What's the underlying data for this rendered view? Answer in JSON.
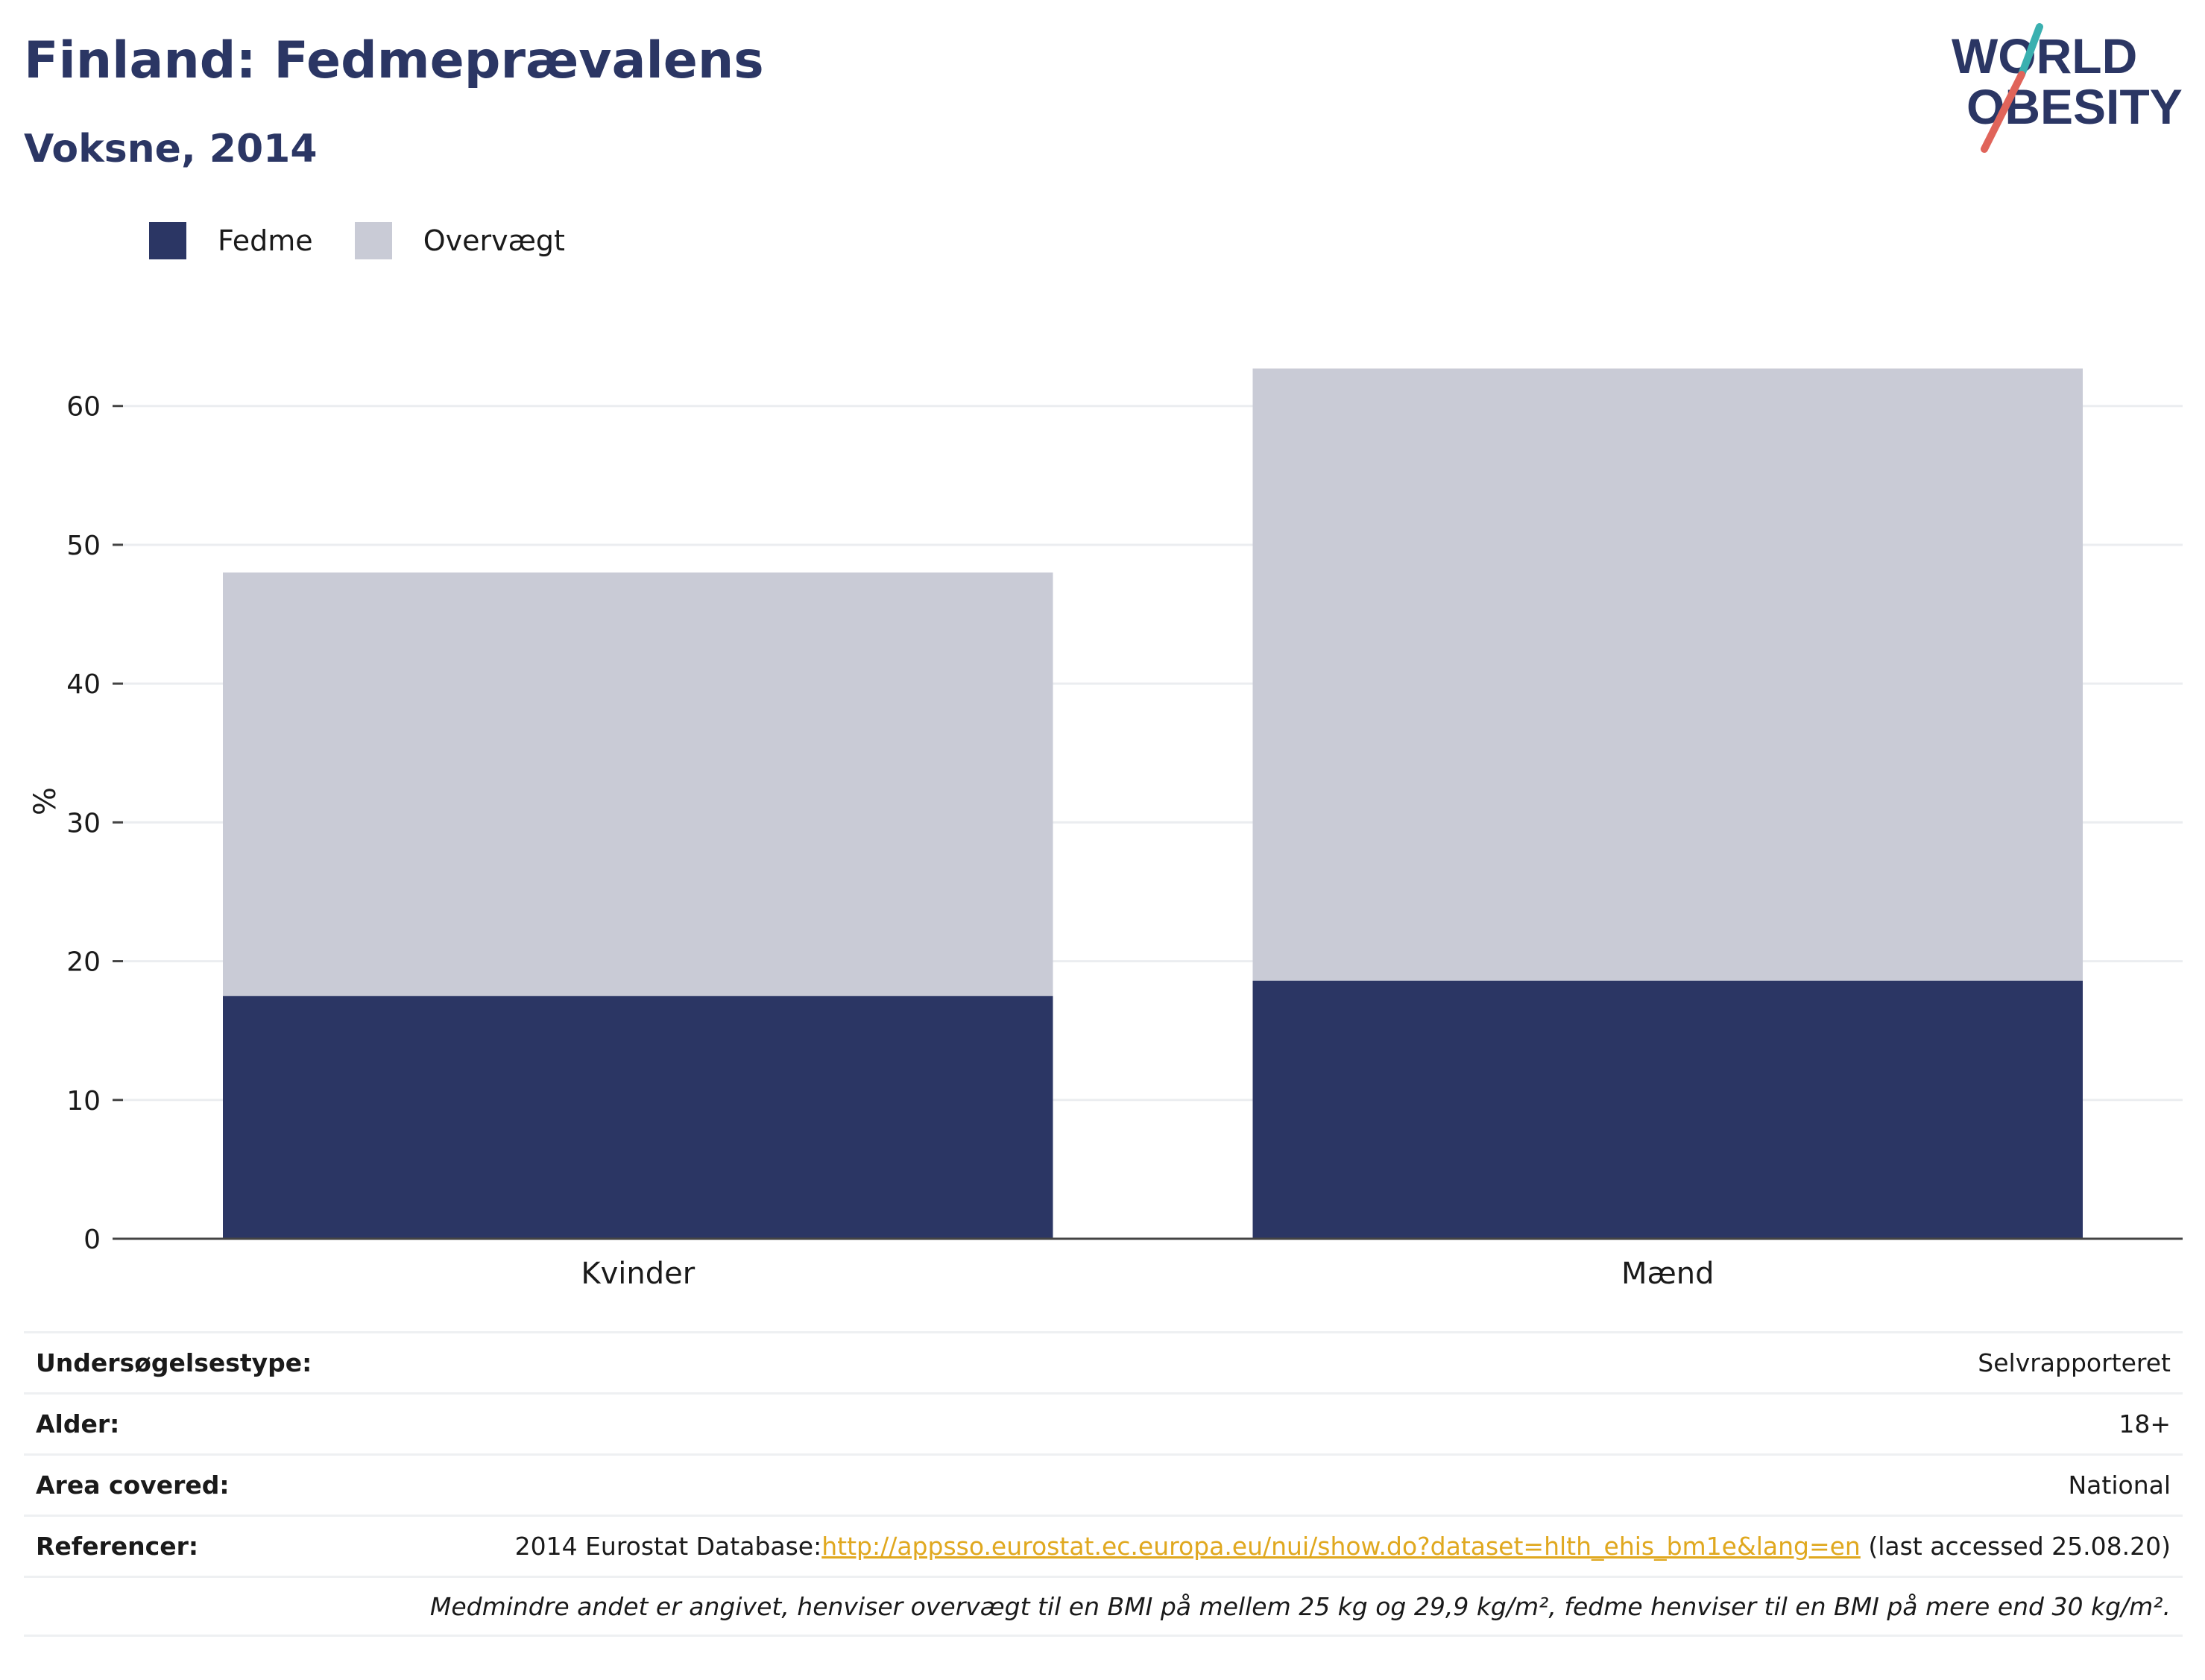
{
  "header": {
    "title": "Finland: Fedmeprævalens",
    "subtitle": "Voksne, 2014"
  },
  "logo": {
    "line1": "WORLD",
    "line2": "OBESITY",
    "colors": {
      "text": "#2b3664",
      "accent_teal": "#3ab0b0",
      "accent_red": "#e0645a"
    }
  },
  "legend": [
    {
      "label": "Fedme",
      "color": "#2b3664"
    },
    {
      "label": "Overvægt",
      "color": "#c9cbd6"
    }
  ],
  "chart_data": {
    "type": "bar",
    "stacked": true,
    "categories": [
      "Kvinder",
      "Mænd"
    ],
    "series": [
      {
        "name": "Fedme",
        "values": [
          17.5,
          18.6
        ],
        "color": "#2b3664"
      },
      {
        "name": "Overvægt",
        "values": [
          30.5,
          44.1
        ],
        "color": "#c9cbd6"
      }
    ],
    "ylabel": "%",
    "ylim": [
      0,
      65
    ],
    "yticks": [
      0,
      10,
      20,
      30,
      40,
      50,
      60
    ],
    "grid": true,
    "legend_position": "top-left"
  },
  "meta": {
    "rows": [
      {
        "key": "Undersøgelsestype:",
        "value": "Selvrapporteret"
      },
      {
        "key": "Alder:",
        "value": "18+"
      },
      {
        "key": "Area covered:",
        "value": "National"
      }
    ],
    "reference": {
      "key": "Referencer:",
      "prefix": "2014 Eurostat Database:",
      "link": "http://appsso.eurostat.ec.europa.eu/nui/show.do?dataset=hlth_ehis_bm1e&lang=en",
      "suffix": " (last accessed 25.08.20)"
    },
    "note": "Medmindre andet er angivet, henviser overvægt til en BMI på mellem 25 kg og 29,9 kg/m², fedme henviser til en BMI på mere end 30 kg/m²."
  }
}
